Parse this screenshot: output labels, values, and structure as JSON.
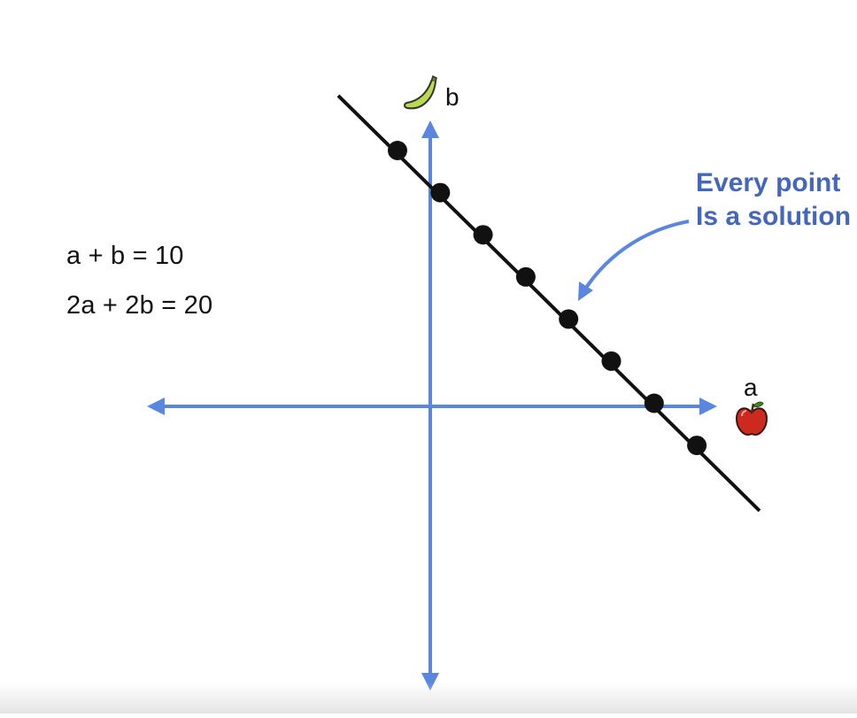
{
  "equations": {
    "eq1": "a + b = 10",
    "eq2": "2a + 2b = 20"
  },
  "axes": {
    "x_label": "a",
    "y_label": "b",
    "color": "#5b86e0"
  },
  "line": {
    "color": "#111111"
  },
  "points": {
    "count": 8,
    "color": "#111111"
  },
  "callout": {
    "line1": "Every point",
    "line2": "Is a solution",
    "color": "#4466bb"
  },
  "icons": {
    "x_axis_icon": "apple-icon",
    "y_axis_icon": "banana-icon"
  }
}
